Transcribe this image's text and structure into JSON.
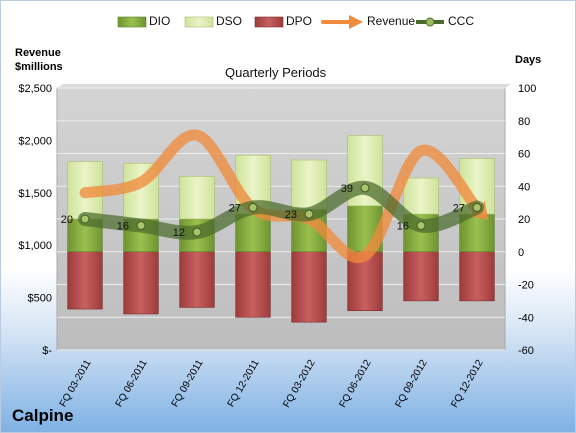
{
  "legend": {
    "dio": "DIO",
    "dso": "DSO",
    "dpo": "DPO",
    "revenue": "Revenue",
    "ccc": "CCC"
  },
  "y_left_title": "Revenue $millions",
  "y_right_title": "Days",
  "plot_title": "Quarterly Periods",
  "company": "Calpine",
  "colors": {
    "dio": "#7a9f38",
    "dso": "#d6e8a4",
    "dpo": "#b34b4b",
    "revenue": "#f08a3c",
    "ccc": "#4b6b2c",
    "plot_bg": "#c9c9c9"
  },
  "chart_data": {
    "type": "bar",
    "categories": [
      "FQ 03-2011",
      "FQ 06-2011",
      "FQ 09-2011",
      "FQ 12-2011",
      "FQ 03-2012",
      "FQ 06-2012",
      "FQ 09-2012",
      "FQ 12-2012"
    ],
    "y_left": {
      "ylim": [
        0,
        2500
      ],
      "ticks": [
        "$-",
        "$500",
        "$1,000",
        "$1,500",
        "$2,000",
        "$2,500"
      ],
      "tick_values": [
        0,
        500,
        1000,
        1500,
        2000,
        2500
      ]
    },
    "y_right": {
      "ylim": [
        -60,
        100
      ],
      "ticks": [
        "-60",
        "-40",
        "-20",
        "0",
        "20",
        "40",
        "60",
        "80",
        "100"
      ],
      "tick_values": [
        -60,
        -40,
        -20,
        0,
        20,
        40,
        60,
        80,
        100
      ]
    },
    "series": [
      {
        "name": "DPO",
        "axis": "right",
        "values": [
          -35,
          -38,
          -34,
          -40,
          -43,
          -36,
          -30,
          -30
        ]
      },
      {
        "name": "DIO",
        "axis": "right",
        "values": [
          20,
          20,
          20,
          23,
          26,
          28,
          23,
          23
        ]
      },
      {
        "name": "DSO",
        "axis": "right",
        "values": [
          35,
          34,
          26,
          36,
          30,
          43,
          22,
          34
        ]
      },
      {
        "name": "Revenue",
        "axis": "left",
        "values": [
          1500,
          1600,
          2050,
          1350,
          1250,
          900,
          1900,
          1350
        ]
      },
      {
        "name": "CCC",
        "axis": "right",
        "values": [
          20,
          16,
          12,
          27,
          23,
          39,
          16,
          27
        ]
      }
    ],
    "ccc_labels": [
      "20",
      "16",
      "12",
      "27",
      "23",
      "39",
      "16",
      "27"
    ],
    "grid": true,
    "legend_position": "top"
  }
}
